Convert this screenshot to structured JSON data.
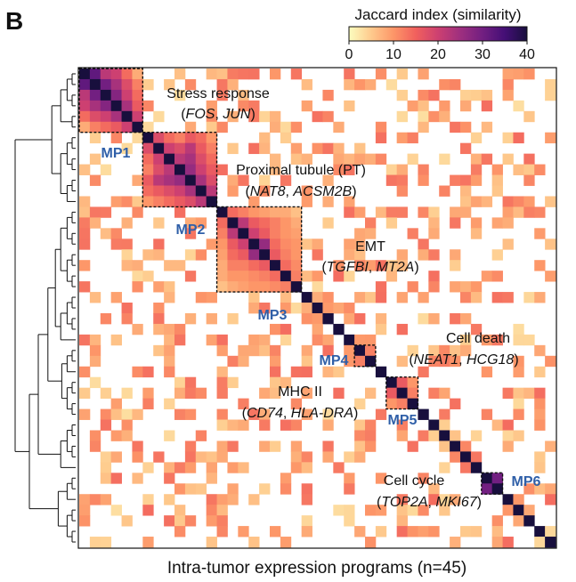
{
  "panel_label": "B",
  "chart_data": {
    "type": "heatmap",
    "title": "",
    "xlabel": "Intra-tumor expression programs (n=45)",
    "ylabel": "",
    "n": 45,
    "colorbar": {
      "label": "Jaccard index (similarity)",
      "ticks": [
        "0",
        "10",
        "20",
        "30",
        "40"
      ],
      "range": [
        0,
        40
      ],
      "colors": [
        "#fcfdbf",
        "#feca8d",
        "#fd9668",
        "#f1605d",
        "#cd4071",
        "#9e2f7f",
        "#721f81",
        "#440f76",
        "#180f3d"
      ]
    },
    "meta_programs": [
      {
        "id": "MP1",
        "name": "Stress response",
        "genes_open": "(",
        "g1": "FOS",
        "sep": ", ",
        "g2": "JUN",
        "genes_close": ")",
        "start": 0,
        "end": 6,
        "values": [
          [
            40,
            32,
            22,
            20,
            14,
            8
          ],
          [
            32,
            40,
            30,
            24,
            18,
            12
          ],
          [
            22,
            30,
            40,
            28,
            20,
            14
          ],
          [
            20,
            24,
            28,
            40,
            24,
            16
          ],
          [
            14,
            18,
            20,
            24,
            40,
            20
          ],
          [
            8,
            12,
            14,
            16,
            20,
            40
          ]
        ]
      },
      {
        "id": "MP2",
        "name": "Proximal tubule (PT)",
        "genes_open": "(",
        "g1": "NAT8",
        "sep": ", ",
        "g2": "ACSM2B",
        "genes_close": ")",
        "start": 6,
        "end": 13,
        "values": [
          [
            40,
            18,
            14,
            12,
            16,
            14,
            10
          ],
          [
            18,
            40,
            20,
            18,
            22,
            16,
            12
          ],
          [
            14,
            20,
            40,
            22,
            24,
            18,
            14
          ],
          [
            12,
            18,
            22,
            40,
            26,
            20,
            16
          ],
          [
            16,
            22,
            24,
            26,
            40,
            24,
            18
          ],
          [
            14,
            16,
            18,
            20,
            24,
            40,
            22
          ],
          [
            10,
            12,
            14,
            16,
            18,
            22,
            40
          ]
        ]
      },
      {
        "id": "MP3",
        "name": "EMT",
        "genes_open": "(",
        "g1": "TGFBI",
        "sep": ", ",
        "g2": "MT2A",
        "genes_close": ")",
        "start": 13,
        "end": 21,
        "values": [
          [
            40,
            14,
            12,
            10,
            9,
            8,
            8,
            6
          ],
          [
            14,
            40,
            22,
            16,
            14,
            12,
            10,
            8
          ],
          [
            12,
            22,
            40,
            20,
            16,
            12,
            10,
            9
          ],
          [
            10,
            16,
            20,
            40,
            26,
            14,
            11,
            10
          ],
          [
            9,
            14,
            16,
            26,
            40,
            16,
            12,
            10
          ],
          [
            8,
            12,
            12,
            14,
            16,
            40,
            14,
            11
          ],
          [
            8,
            10,
            10,
            11,
            12,
            14,
            40,
            12
          ],
          [
            6,
            8,
            9,
            10,
            10,
            11,
            12,
            40
          ]
        ]
      },
      {
        "id": "MP4",
        "name": "Cell death",
        "genes_open": "(",
        "g1": "NEAT1",
        "sep": ", ",
        "g2": "HCG18",
        "genes_close": ")",
        "start": 26,
        "end": 28,
        "values": [
          [
            40,
            12
          ],
          [
            12,
            40
          ]
        ]
      },
      {
        "id": "MP5",
        "name": "MHC II",
        "genes_open": "(",
        "g1": "CD74",
        "sep": ", ",
        "g2": "HLA-DRA",
        "genes_close": ")",
        "start": 29,
        "end": 32,
        "values": [
          [
            40,
            16,
            10
          ],
          [
            16,
            40,
            12
          ],
          [
            10,
            12,
            40
          ]
        ]
      },
      {
        "id": "MP6",
        "name": "Cell cycle",
        "genes_open": "(",
        "g1": "TOP2A",
        "sep": ", ",
        "g2": "MKI67",
        "genes_close": ")",
        "start": 38,
        "end": 40,
        "values": [
          [
            40,
            30
          ],
          [
            30,
            40
          ]
        ]
      }
    ],
    "background_range": [
      3,
      14
    ],
    "background_density": 0.32
  }
}
